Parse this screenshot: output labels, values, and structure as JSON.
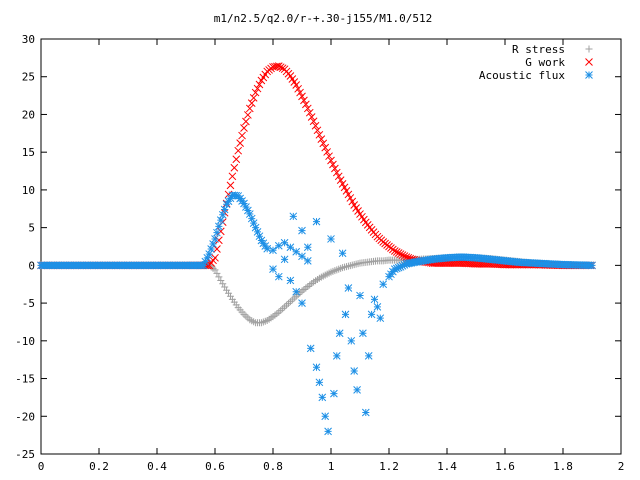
{
  "chart_data": {
    "type": "scatter",
    "title": "m1/n2.5/q2.0/r-+.30-j155/M1.0/512",
    "xlabel": "",
    "ylabel": "",
    "xlim": [
      0,
      2
    ],
    "ylim": [
      -25,
      30
    ],
    "xticks": [
      0,
      0.2,
      0.4,
      0.6,
      0.8,
      1,
      1.2,
      1.4,
      1.6,
      1.8,
      2
    ],
    "xtick_labels": [
      "0",
      "0.2",
      "0.4",
      "0.6",
      "0.8",
      "1",
      "1.2",
      "1.4",
      "1.6",
      "1.8",
      "2"
    ],
    "yticks": [
      -25,
      -20,
      -15,
      -10,
      -5,
      0,
      5,
      10,
      15,
      20,
      25,
      30
    ],
    "ytick_labels": [
      "-25",
      "-20",
      "-15",
      "-10",
      "-5",
      "0",
      "5",
      "10",
      "15",
      "20",
      "25",
      "30"
    ],
    "grid": false,
    "legend_position": "top-right",
    "series": [
      {
        "name": "R stress",
        "marker": "plus",
        "color": "#a0a0a0",
        "points": [
          [
            0.0,
            0
          ],
          [
            0.1,
            0
          ],
          [
            0.2,
            0
          ],
          [
            0.3,
            0
          ],
          [
            0.4,
            0
          ],
          [
            0.5,
            0
          ],
          [
            0.58,
            0
          ],
          [
            0.6,
            -0.6
          ],
          [
            0.62,
            -2.0
          ],
          [
            0.64,
            -3.3
          ],
          [
            0.66,
            -4.5
          ],
          [
            0.68,
            -5.6
          ],
          [
            0.7,
            -6.5
          ],
          [
            0.72,
            -7.2
          ],
          [
            0.74,
            -7.6
          ],
          [
            0.76,
            -7.6
          ],
          [
            0.78,
            -7.3
          ],
          [
            0.8,
            -6.8
          ],
          [
            0.82,
            -6.2
          ],
          [
            0.84,
            -5.5
          ],
          [
            0.86,
            -4.8
          ],
          [
            0.88,
            -4.1
          ],
          [
            0.9,
            -3.4
          ],
          [
            0.92,
            -2.8
          ],
          [
            0.94,
            -2.2
          ],
          [
            0.96,
            -1.7
          ],
          [
            0.98,
            -1.3
          ],
          [
            1.0,
            -0.9
          ],
          [
            1.02,
            -0.6
          ],
          [
            1.04,
            -0.3
          ],
          [
            1.06,
            -0.1
          ],
          [
            1.08,
            0.1
          ],
          [
            1.1,
            0.3
          ],
          [
            1.12,
            0.4
          ],
          [
            1.14,
            0.5
          ],
          [
            1.16,
            0.6
          ],
          [
            1.18,
            0.6
          ],
          [
            1.2,
            0.7
          ],
          [
            1.25,
            0.7
          ],
          [
            1.3,
            0.8
          ],
          [
            1.35,
            0.9
          ],
          [
            1.4,
            1.0
          ],
          [
            1.45,
            1.1
          ],
          [
            1.5,
            1.0
          ],
          [
            1.55,
            0.9
          ],
          [
            1.6,
            0.7
          ],
          [
            1.65,
            0.5
          ],
          [
            1.7,
            0.3
          ],
          [
            1.75,
            0.2
          ],
          [
            1.8,
            0.1
          ],
          [
            1.85,
            0.05
          ],
          [
            1.9,
            0.0
          ]
        ]
      },
      {
        "name": "G work",
        "marker": "cross",
        "color": "#ff0000",
        "points": [
          [
            0.0,
            0
          ],
          [
            0.1,
            0
          ],
          [
            0.2,
            0
          ],
          [
            0.3,
            0
          ],
          [
            0.4,
            0
          ],
          [
            0.5,
            0
          ],
          [
            0.58,
            0
          ],
          [
            0.6,
            1.0
          ],
          [
            0.62,
            4.5
          ],
          [
            0.64,
            8.2
          ],
          [
            0.66,
            11.8
          ],
          [
            0.68,
            15.2
          ],
          [
            0.7,
            18.2
          ],
          [
            0.72,
            20.8
          ],
          [
            0.74,
            22.9
          ],
          [
            0.76,
            24.5
          ],
          [
            0.78,
            25.7
          ],
          [
            0.8,
            26.3
          ],
          [
            0.82,
            26.4
          ],
          [
            0.84,
            26.0
          ],
          [
            0.86,
            25.1
          ],
          [
            0.88,
            23.9
          ],
          [
            0.9,
            22.4
          ],
          [
            0.92,
            20.8
          ],
          [
            0.94,
            19.1
          ],
          [
            0.96,
            17.3
          ],
          [
            0.98,
            15.6
          ],
          [
            1.0,
            13.9
          ],
          [
            1.02,
            12.3
          ],
          [
            1.04,
            10.8
          ],
          [
            1.06,
            9.4
          ],
          [
            1.08,
            8.0
          ],
          [
            1.1,
            6.8
          ],
          [
            1.12,
            5.7
          ],
          [
            1.14,
            4.7
          ],
          [
            1.16,
            3.8
          ],
          [
            1.18,
            3.1
          ],
          [
            1.2,
            2.5
          ],
          [
            1.22,
            1.9
          ],
          [
            1.24,
            1.5
          ],
          [
            1.26,
            1.1
          ],
          [
            1.28,
            0.8
          ],
          [
            1.3,
            0.6
          ],
          [
            1.35,
            0.3
          ],
          [
            1.4,
            0.3
          ],
          [
            1.45,
            0.3
          ],
          [
            1.5,
            0.2
          ],
          [
            1.55,
            0.2
          ],
          [
            1.6,
            0.1
          ],
          [
            1.7,
            0.1
          ],
          [
            1.8,
            0.0
          ],
          [
            1.9,
            0.0
          ]
        ]
      },
      {
        "name": "Acoustic flux",
        "marker": "star",
        "color": "#1e90e6",
        "points": [
          [
            0.0,
            0
          ],
          [
            0.1,
            0
          ],
          [
            0.2,
            0
          ],
          [
            0.3,
            0
          ],
          [
            0.4,
            0
          ],
          [
            0.5,
            0
          ],
          [
            0.56,
            0
          ],
          [
            0.58,
            1.5
          ],
          [
            0.6,
            3.5
          ],
          [
            0.62,
            6.0
          ],
          [
            0.64,
            8.1
          ],
          [
            0.66,
            9.3
          ],
          [
            0.68,
            9.2
          ],
          [
            0.7,
            8.2
          ],
          [
            0.72,
            6.8
          ],
          [
            0.74,
            5.0
          ],
          [
            0.76,
            3.3
          ],
          [
            0.78,
            2.2
          ],
          [
            0.8,
            2.0
          ],
          [
            0.82,
            2.6
          ],
          [
            0.84,
            3.0
          ],
          [
            0.86,
            2.4
          ],
          [
            0.88,
            1.8
          ],
          [
            0.9,
            1.2
          ],
          [
            0.92,
            0.6
          ],
          [
            0.8,
            -0.5
          ],
          [
            0.82,
            -1.5
          ],
          [
            0.84,
            0.8
          ],
          [
            0.86,
            -2.0
          ],
          [
            0.87,
            6.5
          ],
          [
            0.88,
            -3.5
          ],
          [
            0.9,
            4.6
          ],
          [
            0.9,
            -5.0
          ],
          [
            0.92,
            2.4
          ],
          [
            0.93,
            -11.0
          ],
          [
            0.95,
            5.8
          ],
          [
            0.95,
            -13.5
          ],
          [
            0.96,
            -15.5
          ],
          [
            0.97,
            -17.5
          ],
          [
            0.98,
            -20.0
          ],
          [
            0.99,
            -22.0
          ],
          [
            1.0,
            3.5
          ],
          [
            1.01,
            -17.0
          ],
          [
            1.02,
            -12.0
          ],
          [
            1.03,
            -9.0
          ],
          [
            1.04,
            1.6
          ],
          [
            1.05,
            -6.5
          ],
          [
            1.06,
            -3.0
          ],
          [
            1.07,
            -10.0
          ],
          [
            1.08,
            -14.0
          ],
          [
            1.09,
            -16.5
          ],
          [
            1.1,
            -4.0
          ],
          [
            1.11,
            -9.0
          ],
          [
            1.12,
            -19.5
          ],
          [
            1.13,
            -12.0
          ],
          [
            1.14,
            -6.5
          ],
          [
            1.15,
            -4.5
          ],
          [
            1.16,
            -5.5
          ],
          [
            1.17,
            -7.0
          ],
          [
            1.18,
            -2.5
          ],
          [
            1.2,
            -1.5
          ],
          [
            1.22,
            -0.5
          ],
          [
            1.24,
            -0.2
          ],
          [
            1.26,
            0.2
          ],
          [
            1.3,
            0.5
          ],
          [
            1.35,
            0.8
          ],
          [
            1.4,
            1.0
          ],
          [
            1.45,
            1.1
          ],
          [
            1.5,
            1.0
          ],
          [
            1.55,
            0.8
          ],
          [
            1.6,
            0.6
          ],
          [
            1.65,
            0.4
          ],
          [
            1.7,
            0.3
          ],
          [
            1.75,
            0.2
          ],
          [
            1.8,
            0.1
          ],
          [
            1.85,
            0.05
          ],
          [
            1.9,
            0.0
          ]
        ]
      }
    ]
  }
}
